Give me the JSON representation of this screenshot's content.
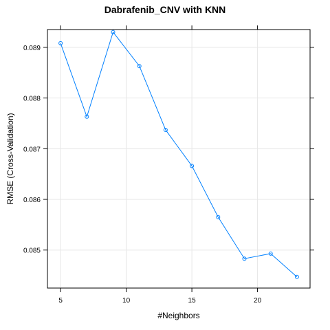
{
  "chart_data": {
    "type": "line",
    "title": "Dabrafenib_CNV with KNN",
    "xlabel": "#Neighbors",
    "ylabel": "RMSE (Cross-Validation)",
    "xlim": [
      4,
      24
    ],
    "ylim": [
      0.08425,
      0.08935
    ],
    "x_ticks": [
      5,
      10,
      15,
      20
    ],
    "y_ticks": [
      0.085,
      0.086,
      0.087,
      0.088,
      0.089
    ],
    "y_tick_labels": [
      "0.085",
      "0.086",
      "0.087",
      "0.088",
      "0.089"
    ],
    "grid": true,
    "series_color": "#0080ff",
    "series": [
      {
        "x": [
          5,
          7,
          9,
          11,
          13,
          15,
          17,
          19,
          21,
          23
        ],
        "y": [
          0.08908,
          0.08763,
          0.0893,
          0.08863,
          0.08737,
          0.08666,
          0.08565,
          0.08483,
          0.08493,
          0.08447
        ]
      }
    ]
  }
}
